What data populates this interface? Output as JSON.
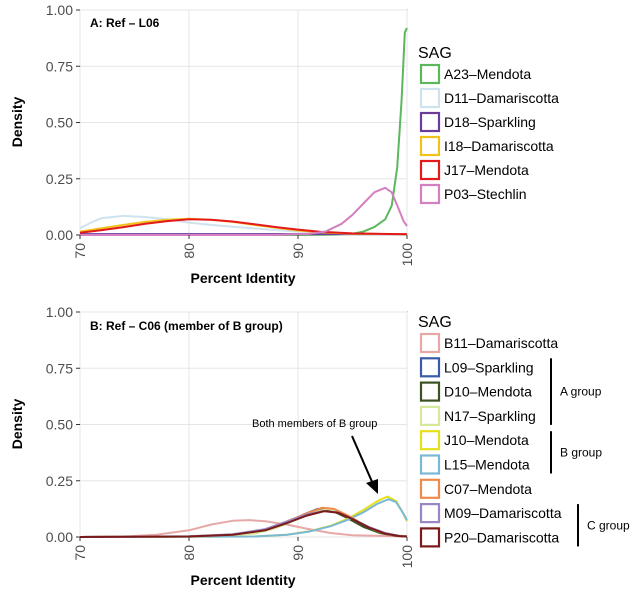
{
  "chart_data": [
    {
      "type": "line",
      "title": "A: Ref – L06",
      "xlabel": "Percent Identity",
      "ylabel": "Density",
      "xlim": [
        70,
        100
      ],
      "ylim": [
        0,
        1.0
      ],
      "x_ticks": [
        "70",
        "80",
        "90",
        "100"
      ],
      "y_ticks": [
        "0.00",
        "0.25",
        "0.50",
        "0.75",
        "1.00"
      ],
      "grid": true,
      "legend": {
        "title": "SAG",
        "placement": "right"
      },
      "series": [
        {
          "name": "A23–Mendota",
          "color": "#5cb85c",
          "points": [
            [
              70,
              0
            ],
            [
              85,
              0
            ],
            [
              90,
              0
            ],
            [
              93,
              0.002
            ],
            [
              95,
              0.006
            ],
            [
              96,
              0.015
            ],
            [
              97,
              0.035
            ],
            [
              98,
              0.07
            ],
            [
              98.6,
              0.13
            ],
            [
              99.1,
              0.3
            ],
            [
              99.5,
              0.6
            ],
            [
              99.8,
              0.9
            ],
            [
              100,
              0.92
            ]
          ]
        },
        {
          "name": "D11–Damariscotta",
          "color": "#cfe3ee",
          "points": [
            [
              70,
              0.03
            ],
            [
              71,
              0.055
            ],
            [
              72,
              0.075
            ],
            [
              74,
              0.085
            ],
            [
              76,
              0.08
            ],
            [
              78,
              0.07
            ],
            [
              80,
              0.055
            ],
            [
              82,
              0.045
            ],
            [
              85,
              0.033
            ],
            [
              88,
              0.022
            ],
            [
              91,
              0.012
            ],
            [
              94,
              0.006
            ],
            [
              97,
              0.003
            ],
            [
              100,
              0.002
            ]
          ]
        },
        {
          "name": "D18–Sparkling",
          "color": "#6a3d9a",
          "points": [
            [
              70,
              0.004
            ],
            [
              80,
              0.004
            ],
            [
              90,
              0.004
            ],
            [
              100,
              0.004
            ]
          ]
        },
        {
          "name": "I18–Damariscotta",
          "color": "#f2c21a",
          "points": [
            [
              70,
              0.015
            ],
            [
              72,
              0.03
            ],
            [
              74,
              0.045
            ],
            [
              76,
              0.058
            ],
            [
              78,
              0.068
            ],
            [
              80,
              0.072
            ],
            [
              82,
              0.068
            ],
            [
              84,
              0.058
            ],
            [
              86,
              0.045
            ],
            [
              88,
              0.032
            ],
            [
              90,
              0.02
            ],
            [
              92,
              0.012
            ],
            [
              95,
              0.006
            ],
            [
              100,
              0.003
            ]
          ]
        },
        {
          "name": "J17–Mendota",
          "color": "#e31a1c",
          "points": [
            [
              70,
              0.01
            ],
            [
              72,
              0.022
            ],
            [
              74,
              0.035
            ],
            [
              76,
              0.05
            ],
            [
              78,
              0.062
            ],
            [
              80,
              0.07
            ],
            [
              82,
              0.068
            ],
            [
              84,
              0.06
            ],
            [
              86,
              0.048
            ],
            [
              88,
              0.035
            ],
            [
              90,
              0.024
            ],
            [
              92,
              0.014
            ],
            [
              95,
              0.007
            ],
            [
              100,
              0.003
            ]
          ]
        },
        {
          "name": "P03–Stechlin",
          "color": "#d47fbf",
          "points": [
            [
              70,
              0
            ],
            [
              88,
              0
            ],
            [
              91,
              0.005
            ],
            [
              92.5,
              0.015
            ],
            [
              94,
              0.05
            ],
            [
              95,
              0.09
            ],
            [
              96,
              0.14
            ],
            [
              97,
              0.19
            ],
            [
              98,
              0.21
            ],
            [
              98.6,
              0.19
            ],
            [
              99.2,
              0.12
            ],
            [
              99.7,
              0.06
            ],
            [
              100,
              0.04
            ]
          ]
        }
      ]
    },
    {
      "type": "line",
      "title": "B: Ref – C06 (member of B group)",
      "xlabel": "Percent Identity",
      "ylabel": "Density",
      "xlim": [
        70,
        100
      ],
      "ylim": [
        0,
        1.0
      ],
      "x_ticks": [
        "70",
        "80",
        "90",
        "100"
      ],
      "y_ticks": [
        "0.00",
        "0.25",
        "0.50",
        "0.75",
        "1.00"
      ],
      "grid": true,
      "legend": {
        "title": "SAG",
        "placement": "right"
      },
      "annotation": "Both members of B group",
      "groups": [
        {
          "label": "A group",
          "members": [
            "L09–Sparkling",
            "D10–Mendota",
            "N17–Sparkling"
          ]
        },
        {
          "label": "B group",
          "members": [
            "J10–Mendota",
            "L15–Mendota"
          ]
        },
        {
          "label": "C group",
          "members": [
            "M09–Damariscotta",
            "P20–Damariscotta"
          ]
        }
      ],
      "series": [
        {
          "name": "B11–Damariscotta",
          "color": "#e8a8a8",
          "points": [
            [
              70,
              0
            ],
            [
              74,
              0.002
            ],
            [
              77,
              0.01
            ],
            [
              80,
              0.03
            ],
            [
              82,
              0.055
            ],
            [
              84,
              0.072
            ],
            [
              85.5,
              0.075
            ],
            [
              87,
              0.07
            ],
            [
              89,
              0.055
            ],
            [
              91,
              0.035
            ],
            [
              93,
              0.018
            ],
            [
              95,
              0.008
            ],
            [
              100,
              0.002
            ]
          ]
        },
        {
          "name": "L09–Sparkling",
          "color": "#3a5ba8",
          "points": [
            [
              70,
              0
            ],
            [
              80,
              0.002
            ],
            [
              84,
              0.01
            ],
            [
              87,
              0.03
            ],
            [
              89,
              0.065
            ],
            [
              90.5,
              0.1
            ],
            [
              91.8,
              0.125
            ],
            [
              93,
              0.12
            ],
            [
              94.5,
              0.09
            ],
            [
              96,
              0.05
            ],
            [
              97.5,
              0.02
            ],
            [
              99,
              0.006
            ],
            [
              100,
              0.003
            ]
          ]
        },
        {
          "name": "D10–Mendota",
          "color": "#3d5222",
          "points": [
            [
              70,
              0
            ],
            [
              80,
              0.002
            ],
            [
              84,
              0.008
            ],
            [
              87,
              0.028
            ],
            [
              89,
              0.06
            ],
            [
              90.5,
              0.095
            ],
            [
              92,
              0.12
            ],
            [
              93.2,
              0.115
            ],
            [
              94.5,
              0.085
            ],
            [
              96,
              0.045
            ],
            [
              97.5,
              0.018
            ],
            [
              99,
              0.005
            ],
            [
              100,
              0.002
            ]
          ]
        },
        {
          "name": "N17–Sparkling",
          "color": "#d6e89a",
          "points": [
            [
              70,
              0
            ],
            [
              82,
              0.003
            ],
            [
              86,
              0.015
            ],
            [
              88,
              0.04
            ],
            [
              90,
              0.08
            ],
            [
              91.5,
              0.11
            ],
            [
              92.7,
              0.125
            ],
            [
              94,
              0.11
            ],
            [
              95.5,
              0.07
            ],
            [
              97,
              0.032
            ],
            [
              98.5,
              0.01
            ],
            [
              100,
              0.003
            ]
          ]
        },
        {
          "name": "J10–Mendota",
          "color": "#e6e01a",
          "points": [
            [
              70,
              0
            ],
            [
              86,
              0.002
            ],
            [
              89,
              0.01
            ],
            [
              91,
              0.025
            ],
            [
              93,
              0.05
            ],
            [
              94.5,
              0.08
            ],
            [
              96,
              0.12
            ],
            [
              97.3,
              0.16
            ],
            [
              98.2,
              0.18
            ],
            [
              99,
              0.16
            ],
            [
              99.6,
              0.11
            ],
            [
              100,
              0.07
            ]
          ]
        },
        {
          "name": "L15–Mendota",
          "color": "#7ab8d4",
          "points": [
            [
              70,
              0
            ],
            [
              86,
              0.002
            ],
            [
              89,
              0.01
            ],
            [
              91,
              0.024
            ],
            [
              93,
              0.048
            ],
            [
              94.5,
              0.075
            ],
            [
              96,
              0.11
            ],
            [
              97.3,
              0.148
            ],
            [
              98.3,
              0.168
            ],
            [
              99,
              0.155
            ],
            [
              99.6,
              0.11
            ],
            [
              100,
              0.075
            ]
          ]
        },
        {
          "name": "C07–Mendota",
          "color": "#f08a4b",
          "points": [
            [
              70,
              0
            ],
            [
              80,
              0.002
            ],
            [
              84,
              0.01
            ],
            [
              87,
              0.032
            ],
            [
              89,
              0.07
            ],
            [
              90.8,
              0.105
            ],
            [
              92.2,
              0.13
            ],
            [
              93.3,
              0.125
            ],
            [
              94.6,
              0.095
            ],
            [
              96,
              0.055
            ],
            [
              97.5,
              0.022
            ],
            [
              99,
              0.006
            ],
            [
              100,
              0.002
            ]
          ]
        },
        {
          "name": "M09–Damariscotta",
          "color": "#9b86c4",
          "points": [
            [
              70,
              0
            ],
            [
              80,
              0.003
            ],
            [
              84,
              0.012
            ],
            [
              87,
              0.035
            ],
            [
              89,
              0.07
            ],
            [
              90.8,
              0.1
            ],
            [
              92.3,
              0.115
            ],
            [
              93.6,
              0.11
            ],
            [
              95,
              0.08
            ],
            [
              96.5,
              0.045
            ],
            [
              98,
              0.018
            ],
            [
              99.3,
              0.005
            ],
            [
              100,
              0.002
            ]
          ]
        },
        {
          "name": "P20–Damariscotta",
          "color": "#7a1a1a",
          "points": [
            [
              70,
              0
            ],
            [
              80,
              0.002
            ],
            [
              84,
              0.01
            ],
            [
              87,
              0.03
            ],
            [
              89,
              0.062
            ],
            [
              90.8,
              0.095
            ],
            [
              92.4,
              0.115
            ],
            [
              93.7,
              0.108
            ],
            [
              95,
              0.08
            ],
            [
              96.5,
              0.042
            ],
            [
              98,
              0.015
            ],
            [
              99.3,
              0.004
            ],
            [
              100,
              0.002
            ]
          ]
        }
      ]
    }
  ]
}
